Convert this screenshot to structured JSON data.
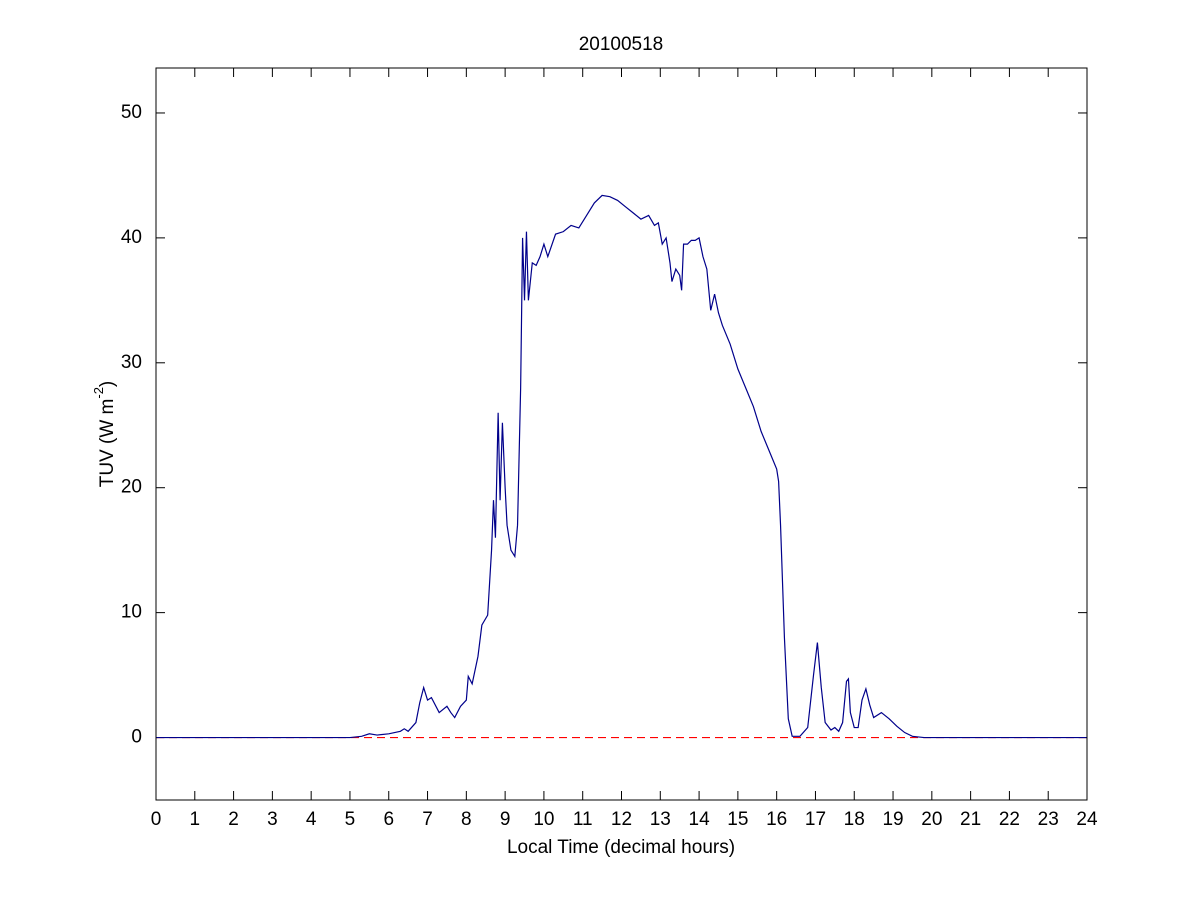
{
  "chart_data": {
    "type": "line",
    "title": "20100518",
    "x_label": "Local Time (decimal hours)",
    "y_label": [
      "TUV (W m",
      "-2",
      ")"
    ],
    "xlim": [
      0,
      24
    ],
    "xticks": [
      0,
      1,
      2,
      3,
      4,
      5,
      6,
      7,
      8,
      9,
      10,
      11,
      12,
      13,
      14,
      15,
      16,
      17,
      18,
      19,
      20,
      21,
      22,
      23,
      24
    ],
    "ylim": [
      -5,
      53.6
    ],
    "yticks": [
      0,
      10,
      20,
      30,
      40,
      50
    ],
    "grid": false,
    "reference_line": {
      "value": 0,
      "color": "#ff0000",
      "dashed": true
    },
    "x": [
      0,
      5.0,
      5.3,
      5.5,
      5.7,
      6.0,
      6.3,
      6.4,
      6.5,
      6.7,
      6.8,
      6.9,
      7.0,
      7.1,
      7.3,
      7.5,
      7.6,
      7.7,
      7.85,
      8.0,
      8.05,
      8.15,
      8.3,
      8.4,
      8.55,
      8.65,
      8.7,
      8.75,
      8.82,
      8.87,
      8.93,
      9.0,
      9.05,
      9.15,
      9.25,
      9.32,
      9.4,
      9.45,
      9.5,
      9.55,
      9.6,
      9.7,
      9.8,
      9.9,
      10.0,
      10.1,
      10.3,
      10.5,
      10.7,
      10.9,
      11.1,
      11.3,
      11.5,
      11.7,
      11.9,
      12.1,
      12.3,
      12.5,
      12.7,
      12.85,
      12.95,
      13.05,
      13.15,
      13.25,
      13.3,
      13.4,
      13.5,
      13.55,
      13.6,
      13.7,
      13.8,
      13.9,
      14.0,
      14.1,
      14.2,
      14.3,
      14.4,
      14.5,
      14.6,
      14.8,
      15.0,
      15.2,
      15.4,
      15.6,
      15.8,
      16.0,
      16.05,
      16.1,
      16.2,
      16.3,
      16.4,
      16.6,
      16.8,
      16.95,
      17.05,
      17.15,
      17.25,
      17.4,
      17.5,
      17.6,
      17.7,
      17.8,
      17.85,
      17.9,
      18.0,
      18.1,
      18.2,
      18.3,
      18.4,
      18.5,
      18.7,
      18.9,
      19.1,
      19.3,
      19.5,
      19.8,
      24
    ],
    "series": [
      {
        "name": "TUV",
        "color": "#00008b",
        "values": [
          0,
          0,
          0.1,
          0.3,
          0.2,
          0.3,
          0.5,
          0.7,
          0.5,
          1.2,
          2.8,
          4.0,
          3.0,
          3.2,
          2.0,
          2.5,
          2.0,
          1.6,
          2.5,
          3.0,
          4.9,
          4.3,
          6.5,
          9.0,
          9.8,
          15,
          19,
          16,
          26,
          19,
          25.2,
          20,
          17,
          15,
          14.5,
          17,
          28,
          40,
          35,
          40.5,
          35,
          38,
          37.8,
          38.5,
          39.5,
          38.5,
          40.3,
          40.5,
          41,
          40.8,
          41.8,
          42.8,
          43.4,
          43.3,
          43,
          42.5,
          42,
          41.5,
          41.8,
          41.0,
          41.2,
          39.5,
          40,
          38,
          36.5,
          37.5,
          37,
          35.8,
          39.5,
          39.5,
          39.8,
          39.8,
          40,
          38.5,
          37.5,
          34.2,
          35.5,
          34,
          33,
          31.5,
          29.5,
          28,
          26.5,
          24.5,
          23,
          21.5,
          20.5,
          17,
          8,
          1.5,
          0.1,
          0.1,
          0.8,
          5,
          7.6,
          4,
          1.2,
          0.6,
          0.8,
          0.5,
          1.2,
          4.5,
          4.7,
          2,
          0.8,
          0.8,
          3.0,
          3.9,
          2.6,
          1.6,
          2.0,
          1.5,
          0.9,
          0.4,
          0.1,
          0,
          0
        ]
      }
    ]
  }
}
